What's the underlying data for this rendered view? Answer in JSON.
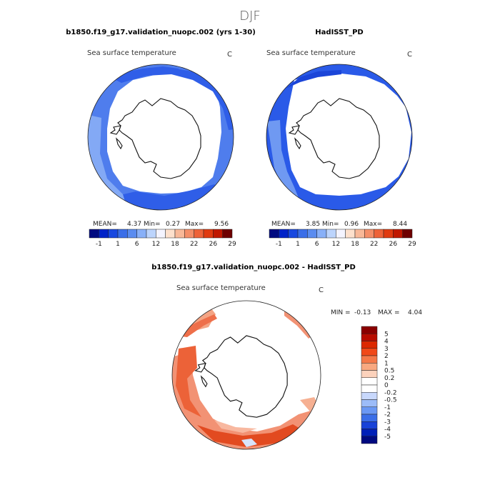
{
  "season": "DJF",
  "panels": [
    {
      "id": "model",
      "title": "b1850.f19_g17.validation_nuopc.002 (yrs 1-30)",
      "variable": "Sea surface temperature",
      "units": "C",
      "stats": {
        "mean_label": "MEAN=",
        "mean": "4.37",
        "min_label": "Min=",
        "min": "0.27",
        "max_label": "Max=",
        "max": "9.56"
      },
      "colorbar_ticks": [
        "-1",
        "1",
        "6",
        "12",
        "18",
        "22",
        "26",
        "29"
      ]
    },
    {
      "id": "obs",
      "title": "HadISST_PD",
      "variable": "Sea surface temperature",
      "units": "C",
      "stats": {
        "mean_label": "MEAN=",
        "mean": "3.85",
        "min_label": "Min=",
        "min": "0.96",
        "max_label": "Max=",
        "max": "8.44"
      },
      "colorbar_ticks": [
        "-1",
        "1",
        "6",
        "12",
        "18",
        "22",
        "26",
        "29"
      ]
    },
    {
      "id": "diff",
      "title": "b1850.f19_g17.validation_nuopc.002 - HadISST_PD",
      "variable": "Sea surface temperature",
      "units": "C",
      "stats": {
        "min_label": "MIN =",
        "min": "-0.13",
        "max_label": "MAX =",
        "max": "4.04"
      },
      "colorbar_ticks": [
        "5",
        "4",
        "3",
        "2",
        "1",
        "0.5",
        "0.2",
        "0",
        "-0.2",
        "-0.5",
        "-1",
        "-2",
        "-3",
        "-4",
        "-5"
      ]
    }
  ],
  "colors": {
    "abs_scale": [
      "#000a80",
      "#0022c8",
      "#1848e0",
      "#3a6ee8",
      "#5a8cf0",
      "#88b0f8",
      "#bcd4fc",
      "#f4f4ff",
      "#fde0cc",
      "#f8b898",
      "#f48e68",
      "#ee6238",
      "#e03a10",
      "#c01800",
      "#6e0000"
    ],
    "diff_scale": [
      "#8a0000",
      "#b80c00",
      "#dc2800",
      "#f04818",
      "#f47848",
      "#f8a880",
      "#fcd2bc",
      "#ffffff",
      "#ffffff",
      "#c8d8fc",
      "#9cbcf8",
      "#6a98f4",
      "#3a6ee8",
      "#1842d8",
      "#0020b8",
      "#000a80"
    ]
  }
}
